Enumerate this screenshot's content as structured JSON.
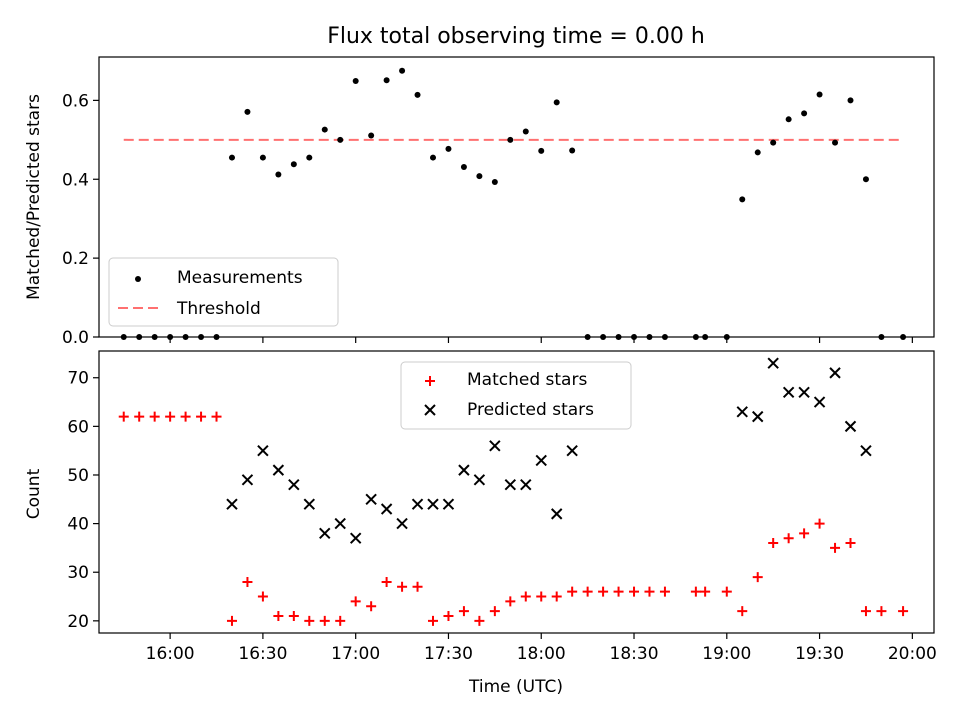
{
  "chart_data": [
    {
      "type": "scatter",
      "title": "Flux total observing time = 0.00 h",
      "xlabel": "",
      "ylabel": "Matched/Predicted stars",
      "ylim": [
        0,
        0.71
      ],
      "yticks": [
        "0.0",
        "0.2",
        "0.4",
        "0.6"
      ],
      "ytick_values": [
        0,
        0.2,
        0.4,
        0.6
      ],
      "x_tick_labels": "hidden (shared with lower panel)",
      "legend_placement": "lower-left",
      "series": [
        {
          "name": "Measurements",
          "marker": "dot",
          "color": "#000000",
          "points": [
            [
              "15:45",
              0
            ],
            [
              "15:50",
              0
            ],
            [
              "15:55",
              0
            ],
            [
              "16:00",
              0
            ],
            [
              "16:05",
              0
            ],
            [
              "16:10",
              0
            ],
            [
              "16:15",
              0
            ],
            [
              "16:20",
              0.455
            ],
            [
              "16:25",
              0.571
            ],
            [
              "16:30",
              0.455
            ],
            [
              "16:35",
              0.412
            ],
            [
              "16:40",
              0.438
            ],
            [
              "16:45",
              0.455
            ],
            [
              "16:50",
              0.526
            ],
            [
              "16:55",
              0.5
            ],
            [
              "17:00",
              0.649
            ],
            [
              "17:05",
              0.511
            ],
            [
              "17:10",
              0.651
            ],
            [
              "17:15",
              0.675
            ],
            [
              "17:20",
              0.614
            ],
            [
              "17:25",
              0.455
            ],
            [
              "17:30",
              0.477
            ],
            [
              "17:35",
              0.431
            ],
            [
              "17:40",
              0.408
            ],
            [
              "17:45",
              0.393
            ],
            [
              "17:50",
              0.5
            ],
            [
              "17:55",
              0.521
            ],
            [
              "18:00",
              0.472
            ],
            [
              "18:05",
              0.595
            ],
            [
              "18:10",
              0.473
            ],
            [
              "18:15",
              0
            ],
            [
              "18:20",
              0
            ],
            [
              "18:25",
              0
            ],
            [
              "18:30",
              0
            ],
            [
              "18:35",
              0
            ],
            [
              "18:40",
              0
            ],
            [
              "18:50",
              0
            ],
            [
              "18:53",
              0
            ],
            [
              "19:00",
              0
            ],
            [
              "19:05",
              0.349
            ],
            [
              "19:10",
              0.468
            ],
            [
              "19:15",
              0.493
            ],
            [
              "19:20",
              0.552
            ],
            [
              "19:25",
              0.567
            ],
            [
              "19:30",
              0.615
            ],
            [
              "19:35",
              0.493
            ],
            [
              "19:40",
              0.6
            ],
            [
              "19:45",
              0.4
            ],
            [
              "19:50",
              0
            ],
            [
              "19:57",
              0
            ]
          ]
        },
        {
          "name": "Threshold",
          "style": "dashed",
          "color": "#ff7070",
          "points": [
            [
              "15:45",
              0.5
            ],
            [
              "19:57",
              0.5
            ]
          ]
        }
      ]
    },
    {
      "type": "scatter",
      "title": "",
      "xlabel": "Time (UTC)",
      "ylabel": "Count",
      "ylim": [
        17.5,
        75.5
      ],
      "yticks": [
        "20",
        "30",
        "40",
        "50",
        "60",
        "70"
      ],
      "ytick_values": [
        20,
        30,
        40,
        50,
        60,
        70
      ],
      "xlim": [
        "15:37",
        "20:07"
      ],
      "xticks": [
        "16:00",
        "16:30",
        "17:00",
        "17:30",
        "18:00",
        "18:30",
        "19:00",
        "19:30",
        "20:00"
      ],
      "legend_placement": "upper-center",
      "series": [
        {
          "name": "Matched stars",
          "marker": "plus",
          "color": "#ff0000",
          "points": [
            [
              "15:45",
              62
            ],
            [
              "15:50",
              62
            ],
            [
              "15:55",
              62
            ],
            [
              "16:00",
              62
            ],
            [
              "16:05",
              62
            ],
            [
              "16:10",
              62
            ],
            [
              "16:15",
              62
            ],
            [
              "16:20",
              20
            ],
            [
              "16:25",
              28
            ],
            [
              "16:30",
              25
            ],
            [
              "16:35",
              21
            ],
            [
              "16:40",
              21
            ],
            [
              "16:45",
              20
            ],
            [
              "16:50",
              20
            ],
            [
              "16:55",
              20
            ],
            [
              "17:00",
              24
            ],
            [
              "17:05",
              23
            ],
            [
              "17:10",
              28
            ],
            [
              "17:15",
              27
            ],
            [
              "17:20",
              27
            ],
            [
              "17:25",
              20
            ],
            [
              "17:30",
              21
            ],
            [
              "17:35",
              22
            ],
            [
              "17:40",
              20
            ],
            [
              "17:45",
              22
            ],
            [
              "17:50",
              24
            ],
            [
              "17:55",
              25
            ],
            [
              "18:00",
              25
            ],
            [
              "18:05",
              25
            ],
            [
              "18:10",
              26
            ],
            [
              "18:15",
              26
            ],
            [
              "18:20",
              26
            ],
            [
              "18:25",
              26
            ],
            [
              "18:30",
              26
            ],
            [
              "18:35",
              26
            ],
            [
              "18:40",
              26
            ],
            [
              "18:50",
              26
            ],
            [
              "18:53",
              26
            ],
            [
              "19:00",
              26
            ],
            [
              "19:05",
              22
            ],
            [
              "19:10",
              29
            ],
            [
              "19:15",
              36
            ],
            [
              "19:20",
              37
            ],
            [
              "19:25",
              38
            ],
            [
              "19:30",
              40
            ],
            [
              "19:35",
              35
            ],
            [
              "19:40",
              36
            ],
            [
              "19:45",
              22
            ],
            [
              "19:50",
              22
            ],
            [
              "19:57",
              22
            ]
          ]
        },
        {
          "name": "Predicted stars",
          "marker": "x",
          "color": "#000000",
          "points": [
            [
              "16:20",
              44
            ],
            [
              "16:25",
              49
            ],
            [
              "16:30",
              55
            ],
            [
              "16:35",
              51
            ],
            [
              "16:40",
              48
            ],
            [
              "16:45",
              44
            ],
            [
              "16:50",
              38
            ],
            [
              "16:55",
              40
            ],
            [
              "17:00",
              37
            ],
            [
              "17:05",
              45
            ],
            [
              "17:10",
              43
            ],
            [
              "17:15",
              40
            ],
            [
              "17:20",
              44
            ],
            [
              "17:25",
              44
            ],
            [
              "17:30",
              44
            ],
            [
              "17:35",
              51
            ],
            [
              "17:40",
              49
            ],
            [
              "17:45",
              56
            ],
            [
              "17:50",
              48
            ],
            [
              "17:55",
              48
            ],
            [
              "18:00",
              53
            ],
            [
              "18:05",
              42
            ],
            [
              "18:10",
              55
            ],
            [
              "19:05",
              63
            ],
            [
              "19:10",
              62
            ],
            [
              "19:15",
              73
            ],
            [
              "19:20",
              67
            ],
            [
              "19:25",
              67
            ],
            [
              "19:30",
              65
            ],
            [
              "19:35",
              71
            ],
            [
              "19:40",
              60
            ],
            [
              "19:45",
              55
            ]
          ]
        }
      ]
    }
  ]
}
